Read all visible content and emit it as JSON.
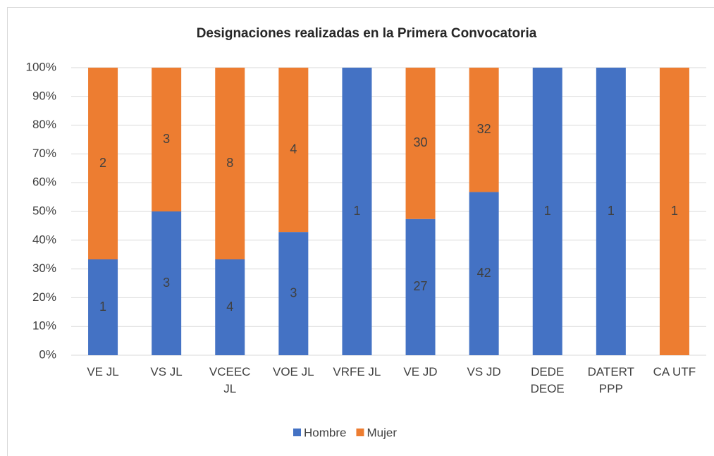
{
  "chart_data": {
    "type": "stacked_percent_bar",
    "title": "Designaciones realizadas en la Primera Convocatoria",
    "categories": [
      "VE JL",
      "VS JL",
      "VCEEC\nJL",
      "VOE JL",
      "VRFE JL",
      "VE JD",
      "VS JD",
      "DEDE\nDEOE",
      "DATERT\nPPP",
      "CA UTF"
    ],
    "series": [
      {
        "name": "Hombre",
        "color": "#4472c4",
        "values": [
          1,
          3,
          4,
          3,
          1,
          27,
          42,
          1,
          1,
          0
        ]
      },
      {
        "name": "Mujer",
        "color": "#ed7d31",
        "values": [
          2,
          3,
          8,
          4,
          0,
          30,
          32,
          0,
          0,
          1
        ]
      }
    ],
    "ylim": [
      0,
      100
    ],
    "yticks": [
      {
        "value": 0,
        "label": "0%"
      },
      {
        "value": 10,
        "label": "10%"
      },
      {
        "value": 20,
        "label": "20%"
      },
      {
        "value": 30,
        "label": "30%"
      },
      {
        "value": 40,
        "label": "40%"
      },
      {
        "value": 50,
        "label": "50%"
      },
      {
        "value": 60,
        "label": "60%"
      },
      {
        "value": 70,
        "label": "70%"
      },
      {
        "value": 80,
        "label": "80%"
      },
      {
        "value": 90,
        "label": "90%"
      },
      {
        "value": 100,
        "label": "100%"
      }
    ],
    "grid": true,
    "legend": "bottom"
  }
}
